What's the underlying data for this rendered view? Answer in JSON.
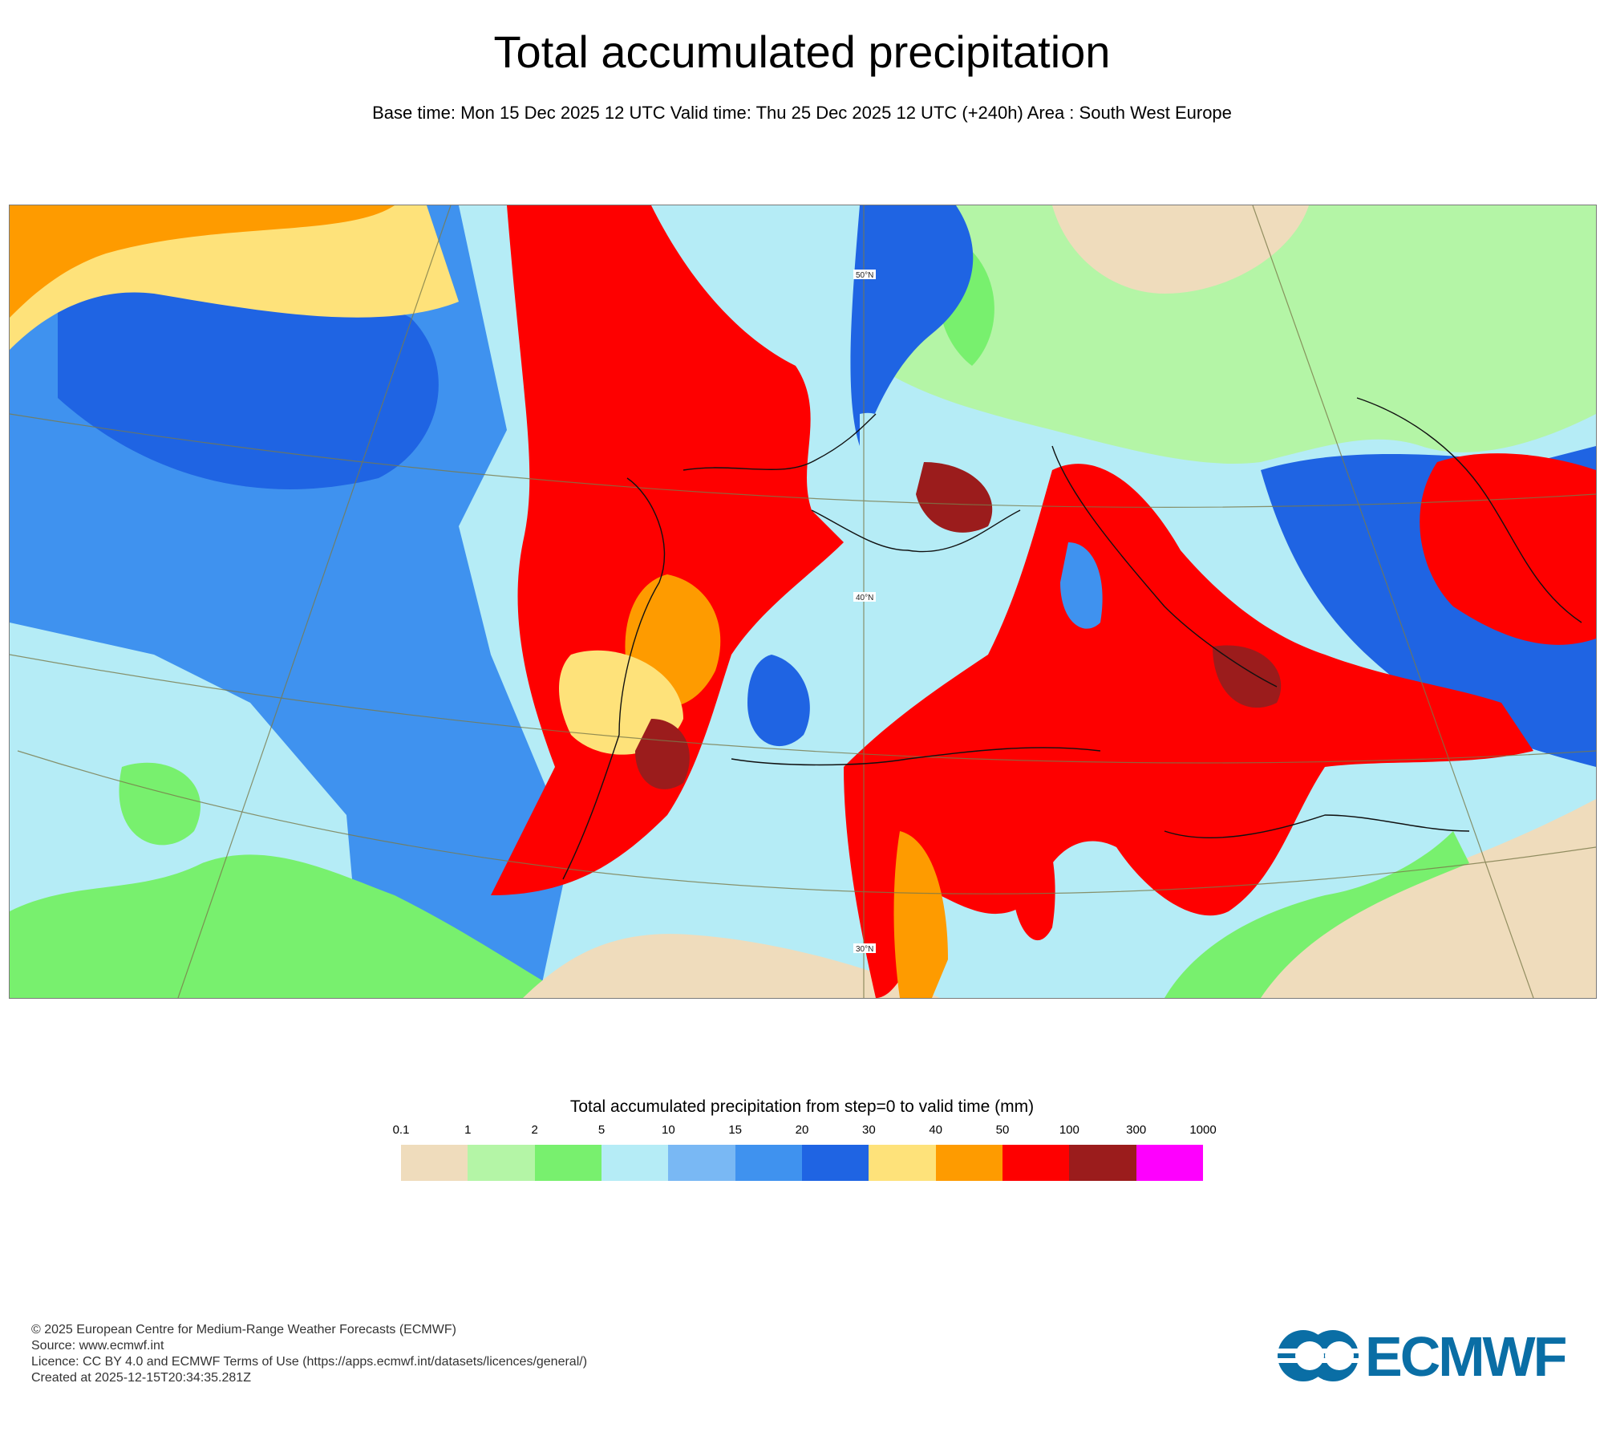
{
  "title": "Total accumulated precipitation",
  "subtitle": "Base time: Mon 15 Dec 2025 12 UTC Valid time: Thu 25 Dec 2025 12 UTC (+240h) Area : South West Europe",
  "map": {
    "grid_labels": [
      "50°N",
      "40°N",
      "30°N"
    ]
  },
  "legend": {
    "title": "Total accumulated precipitation from step=0 to valid time (mm)",
    "ticks": [
      "0.1",
      "1",
      "2",
      "5",
      "10",
      "15",
      "20",
      "30",
      "40",
      "50",
      "100",
      "300",
      "1000"
    ],
    "colors": [
      "#efdcbc",
      "#b4f5a6",
      "#78f06e",
      "#b5ecf6",
      "#79b8f4",
      "#3f92ef",
      "#1f64e3",
      "#fee27a",
      "#fe9b00",
      "#fe0000",
      "#9b1c1c",
      "#fe00fe"
    ]
  },
  "footer": {
    "copyright": "© 2025 European Centre for Medium-Range Weather Forecasts (ECMWF)",
    "source": "Source: www.ecmwf.int",
    "licence": "Licence: CC BY 4.0 and ECMWF Terms of Use (https://apps.ecmwf.int/datasets/licences/general/)",
    "created": "Created at 2025-12-15T20:34:35.281Z"
  },
  "logo": {
    "text": "ECMWF",
    "color": "#0a6ea5"
  }
}
